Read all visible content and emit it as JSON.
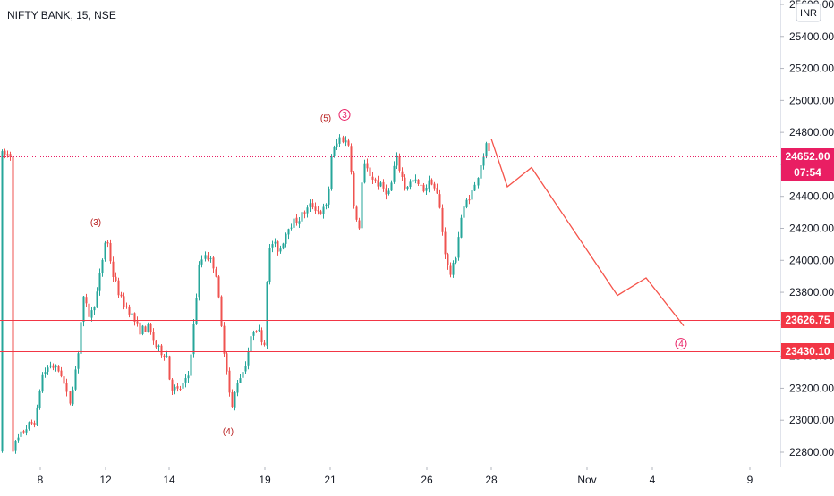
{
  "header": {
    "symbol": "NIFTY BANK, 15, NSE",
    "currency": "INR"
  },
  "colors": {
    "up": "#26a69a",
    "down": "#ef5350",
    "hline": "#f23645",
    "projection": "#f5534a",
    "wave_red": "#b71c1c",
    "wave_pink": "#e91e63",
    "last_price_bg": "#e91e63"
  },
  "chart_data": {
    "type": "candlestick",
    "y_axis": {
      "ticks": [
        "22800.00",
        "23000.00",
        "23200.00",
        "23400.00",
        "23600.00",
        "23800.00",
        "24000.00",
        "24200.00",
        "24400.00",
        "24600.00",
        "24800.00",
        "25000.00",
        "25200.00",
        "25400.00",
        "25600.00"
      ],
      "range": [
        22740,
        25620
      ]
    },
    "x_axis": {
      "ticks": [
        "8",
        "12",
        "14",
        "19",
        "21",
        "26",
        "28",
        "Nov",
        "4",
        "9"
      ]
    },
    "horizontal_lines": [
      {
        "price": 23626.75,
        "label": "23626.75"
      },
      {
        "price": 23430.1,
        "label": "23430.10"
      }
    ],
    "last_price": {
      "price": 24652.0,
      "label": "24652.00",
      "countdown": "07:54"
    },
    "anchors": [
      {
        "x": 12,
        "p": 22810
      },
      {
        "x": 28,
        "p": 22950
      },
      {
        "x": 40,
        "p": 23000
      },
      {
        "x": 46,
        "p": 23270
      },
      {
        "x": 56,
        "p": 23350
      },
      {
        "x": 68,
        "p": 23300
      },
      {
        "x": 77,
        "p": 23100
      },
      {
        "x": 86,
        "p": 23400
      },
      {
        "x": 92,
        "p": 23760
      },
      {
        "x": 100,
        "p": 23640
      },
      {
        "x": 108,
        "p": 23800
      },
      {
        "x": 118,
        "p": 24160
      },
      {
        "x": 126,
        "p": 23900
      },
      {
        "x": 135,
        "p": 23750
      },
      {
        "x": 145,
        "p": 23680
      },
      {
        "x": 155,
        "p": 23560
      },
      {
        "x": 165,
        "p": 23580
      },
      {
        "x": 175,
        "p": 23450
      },
      {
        "x": 187,
        "p": 23400
      },
      {
        "x": 190,
        "p": 23220
      },
      {
        "x": 198,
        "p": 23180
      },
      {
        "x": 210,
        "p": 23260
      },
      {
        "x": 217,
        "p": 23620
      },
      {
        "x": 222,
        "p": 23950
      },
      {
        "x": 228,
        "p": 24050
      },
      {
        "x": 240,
        "p": 23950
      },
      {
        "x": 248,
        "p": 23500
      },
      {
        "x": 252,
        "p": 23360
      },
      {
        "x": 258,
        "p": 23050
      },
      {
        "x": 264,
        "p": 23240
      },
      {
        "x": 272,
        "p": 23320
      },
      {
        "x": 278,
        "p": 23460
      },
      {
        "x": 284,
        "p": 23600
      },
      {
        "x": 295,
        "p": 23480
      },
      {
        "x": 296,
        "p": 23780
      },
      {
        "x": 302,
        "p": 24120
      },
      {
        "x": 312,
        "p": 24060
      },
      {
        "x": 322,
        "p": 24220
      },
      {
        "x": 332,
        "p": 24250
      },
      {
        "x": 340,
        "p": 24300
      },
      {
        "x": 348,
        "p": 24350
      },
      {
        "x": 358,
        "p": 24300
      },
      {
        "x": 366,
        "p": 24340
      },
      {
        "x": 370,
        "p": 24650
      },
      {
        "x": 380,
        "p": 24770
      },
      {
        "x": 390,
        "p": 24720
      },
      {
        "x": 394,
        "p": 24350
      },
      {
        "x": 400,
        "p": 24160
      },
      {
        "x": 405,
        "p": 24600
      },
      {
        "x": 415,
        "p": 24520
      },
      {
        "x": 425,
        "p": 24460
      },
      {
        "x": 435,
        "p": 24420
      },
      {
        "x": 442,
        "p": 24650
      },
      {
        "x": 452,
        "p": 24460
      },
      {
        "x": 462,
        "p": 24500
      },
      {
        "x": 472,
        "p": 24440
      },
      {
        "x": 482,
        "p": 24500
      },
      {
        "x": 490,
        "p": 24380
      },
      {
        "x": 496,
        "p": 24100
      },
      {
        "x": 502,
        "p": 23900
      },
      {
        "x": 508,
        "p": 23980
      },
      {
        "x": 515,
        "p": 24260
      },
      {
        "x": 522,
        "p": 24380
      },
      {
        "x": 530,
        "p": 24450
      },
      {
        "x": 536,
        "p": 24600
      },
      {
        "x": 543,
        "p": 24720
      },
      {
        "x": 548,
        "p": 24660
      }
    ],
    "projection_path": [
      {
        "x": 549,
        "p": 24760
      },
      {
        "x": 567,
        "p": 24460
      },
      {
        "x": 594,
        "p": 24580
      },
      {
        "x": 690,
        "p": 23780
      },
      {
        "x": 722,
        "p": 23890
      },
      {
        "x": 764,
        "p": 23590
      }
    ],
    "annotations": [
      {
        "text": "(3)",
        "x": 107,
        "p": 24240,
        "style": "red"
      },
      {
        "text": "(4)",
        "x": 255,
        "p": 22930,
        "style": "red"
      },
      {
        "text": "(5)",
        "x": 364,
        "p": 24890,
        "style": "red"
      },
      {
        "text": "3",
        "x": 385,
        "p": 24910,
        "style": "pink-circle"
      },
      {
        "text": "4",
        "x": 761,
        "p": 23478,
        "style": "pink-circle"
      }
    ]
  }
}
